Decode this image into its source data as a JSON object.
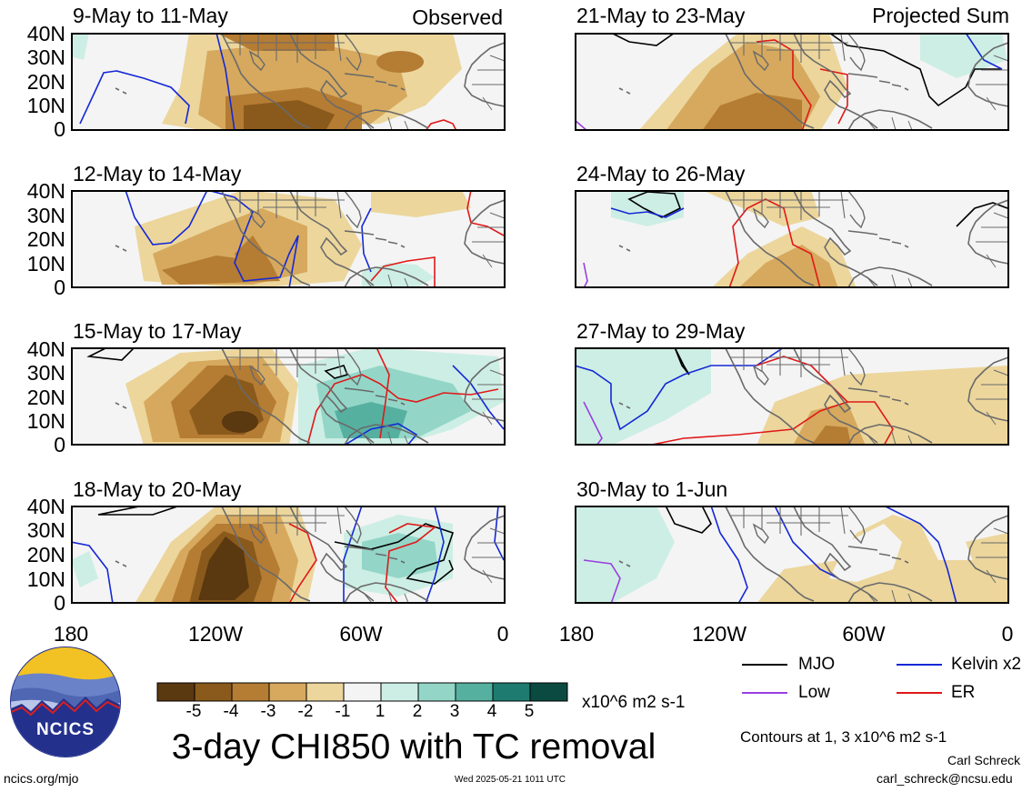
{
  "corner_labels": {
    "left": "Observed",
    "right": "Projected Sum"
  },
  "panels": [
    {
      "title": "9-May to 11-May"
    },
    {
      "title": "12-May to 14-May"
    },
    {
      "title": "15-May to 17-May"
    },
    {
      "title": "18-May to 20-May"
    },
    {
      "title": "21-May to 23-May"
    },
    {
      "title": "24-May to 26-May"
    },
    {
      "title": "27-May to 29-May"
    },
    {
      "title": "30-May to 1-Jun"
    }
  ],
  "lat_labels": [
    "40N",
    "30N",
    "20N",
    "10N",
    "0"
  ],
  "lon_labels": [
    "180",
    "120W",
    "60W",
    "0"
  ],
  "colorbar": {
    "labels": [
      "-5",
      "-4",
      "-3",
      "-2",
      "-1",
      "1",
      "2",
      "3",
      "4",
      "5"
    ],
    "colors": [
      "#5a3810",
      "#8a5a1c",
      "#b57c34",
      "#d6a95e",
      "#ecd69c",
      "#f4f4f4",
      "#cdeee4",
      "#93d6c8",
      "#55b0a0",
      "#1d7b70",
      "#0b4a41"
    ],
    "units": "x10^6 m2 s-1"
  },
  "main_title": "3-day CHI850 with TC removal",
  "legend": {
    "items": [
      {
        "label": "MJO",
        "color": "#000000"
      },
      {
        "label": "Kelvin x2",
        "color": "#1428d6"
      },
      {
        "label": "Low",
        "color": "#9a3ee0"
      },
      {
        "label": "ER",
        "color": "#e01818"
      }
    ],
    "contours_note": "Contours at 1, 3 x10^6 m2 s-1"
  },
  "logo_text": "NCICS",
  "author": "Carl Schreck",
  "email": "carl_schreck@ncsu.edu",
  "website": "ncics.org/mjo",
  "timestamp": "Wed 2025-05-21 1011 UTC"
}
